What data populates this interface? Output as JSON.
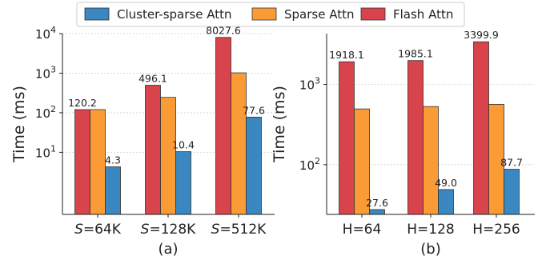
{
  "legend": {
    "items": [
      {
        "label": "Cluster-sparse Attn",
        "color": "#3a87c1"
      },
      {
        "label": "Sparse Attn",
        "color": "#fb9b35"
      },
      {
        "label": "Flash Attn",
        "color": "#d9434b"
      }
    ],
    "placement": "top-center"
  },
  "chart_data": [
    {
      "type": "bar",
      "subtitle": "(a)",
      "ylabel": "Time (ms)",
      "xlabel": "",
      "yscale": "log",
      "ylim": [
        0.27,
        10000
      ],
      "yticks": [
        10,
        100,
        1000,
        10000
      ],
      "ytick_labels": [
        {
          "base": "10",
          "exp": "1"
        },
        {
          "base": "10",
          "exp": "2"
        },
        {
          "base": "10",
          "exp": "3"
        },
        {
          "base": "10",
          "exp": "4"
        }
      ],
      "grid": true,
      "categories": [
        {
          "var": "S",
          "rest": "=64K"
        },
        {
          "var": "S",
          "rest": "=128K"
        },
        {
          "var": "S",
          "rest": "=512K"
        }
      ],
      "series": [
        {
          "name": "Flash Attn",
          "color": "#d9434b",
          "values": [
            120.2,
            496.1,
            8027.6
          ],
          "labels": [
            "120.2",
            "496.1",
            "8027.6"
          ]
        },
        {
          "name": "Sparse Attn",
          "color": "#fb9b35",
          "values": [
            120.2,
            245,
            1020
          ],
          "labels": [
            "",
            "",
            ""
          ]
        },
        {
          "name": "Cluster-sparse Attn",
          "color": "#3a87c1",
          "values": [
            4.3,
            10.4,
            77.6
          ],
          "labels": [
            "4.3",
            "10.4",
            "77.6"
          ]
        }
      ]
    },
    {
      "type": "bar",
      "subtitle": "(b)",
      "ylabel": "Time (ms)",
      "xlabel": "",
      "yscale": "log",
      "ylim": [
        24,
        4300
      ],
      "yticks": [
        100,
        1000
      ],
      "ytick_labels": [
        {
          "base": "10",
          "exp": "2"
        },
        {
          "base": "10",
          "exp": "3"
        }
      ],
      "grid": true,
      "categories": [
        {
          "var": "",
          "rest": "H=64"
        },
        {
          "var": "",
          "rest": "H=128"
        },
        {
          "var": "",
          "rest": "H=256"
        }
      ],
      "series": [
        {
          "name": "Flash Attn",
          "color": "#d9434b",
          "values": [
            1918.1,
            1985.1,
            3399.9
          ],
          "labels": [
            "1918.1",
            "1985.1",
            "3399.9"
          ]
        },
        {
          "name": "Sparse Attn",
          "color": "#fb9b35",
          "values": [
            495,
            530,
            565
          ],
          "labels": [
            "",
            "",
            ""
          ]
        },
        {
          "name": "Cluster-sparse Attn",
          "color": "#3a87c1",
          "values": [
            27.6,
            49.0,
            87.7
          ],
          "labels": [
            "27.6",
            "49.0",
            "87.7"
          ]
        }
      ]
    }
  ]
}
